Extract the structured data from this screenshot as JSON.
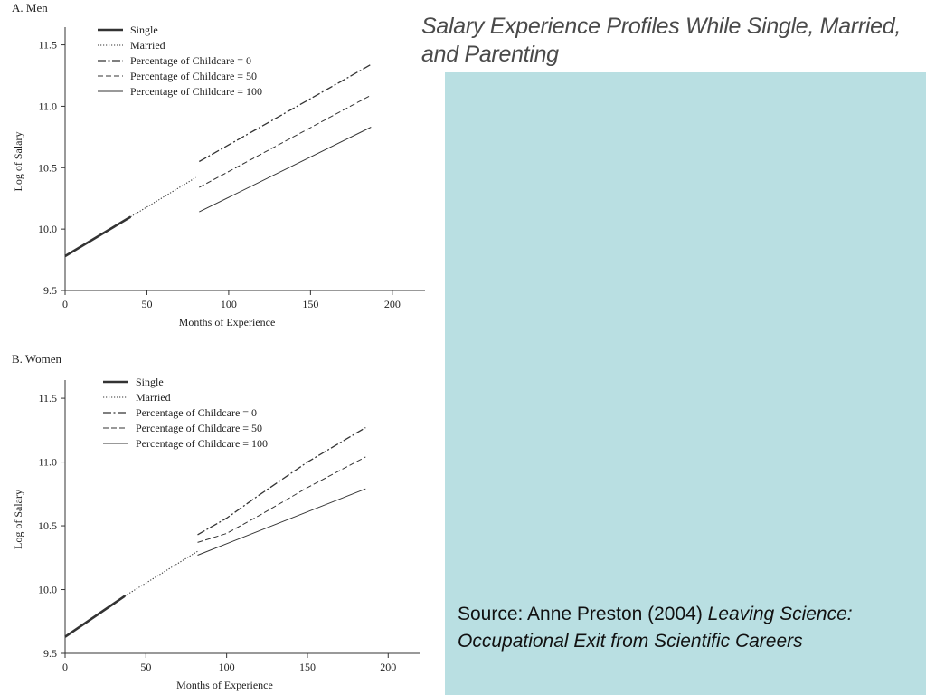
{
  "slide": {
    "title": "Salary Experience Profiles While Single, Married, and Parenting",
    "panel_color": "#b9dfe2",
    "source_prefix": "Source: Anne Preston (2004) ",
    "source_book": "Leaving Science: Occupational Exit from Scientific Careers"
  },
  "chart_data": [
    {
      "type": "line",
      "title": "A. Men",
      "xlabel": "Months of Experience",
      "ylabel": "Log of Salary",
      "xlim": [
        0,
        220
      ],
      "ylim": [
        9.5,
        11.6
      ],
      "xticks": [
        0,
        50,
        100,
        150,
        200
      ],
      "yticks": [
        9.5,
        10.0,
        10.5,
        11.0,
        11.5
      ],
      "ytick_labels": [
        "9.5",
        "10.0",
        "10.5",
        "11.0",
        "11.5"
      ],
      "legend_position": "top-left",
      "series": [
        {
          "name": "Single",
          "style": "solid-thick",
          "x": [
            0,
            40
          ],
          "y": [
            9.78,
            10.1
          ]
        },
        {
          "name": "Married",
          "style": "dotted",
          "x": [
            40,
            80
          ],
          "y": [
            10.1,
            10.42
          ]
        },
        {
          "name": "Percentage of Childcare = 0",
          "style": "dash-dot",
          "x": [
            82,
            187
          ],
          "y": [
            10.55,
            11.34
          ]
        },
        {
          "name": "Percentage of Childcare = 50",
          "style": "dashed",
          "x": [
            82,
            187
          ],
          "y": [
            10.34,
            11.09
          ]
        },
        {
          "name": "Percentage of Childcare = 100",
          "style": "solid-thin",
          "x": [
            82,
            187
          ],
          "y": [
            10.14,
            10.83
          ]
        }
      ]
    },
    {
      "type": "line",
      "title": "B. Women",
      "xlabel": "Months of Experience",
      "ylabel": "Log of Salary",
      "xlim": [
        0,
        220
      ],
      "ylim": [
        9.5,
        11.6
      ],
      "xticks": [
        0,
        50,
        100,
        150,
        200
      ],
      "yticks": [
        9.5,
        10.0,
        10.5,
        11.0,
        11.5
      ],
      "ytick_labels": [
        "9.5",
        "10.0",
        "10.5",
        "11.0",
        "11.5"
      ],
      "legend_position": "top-left",
      "series": [
        {
          "name": "Single",
          "style": "solid-thick",
          "x": [
            0,
            37
          ],
          "y": [
            9.63,
            9.95
          ]
        },
        {
          "name": "Married",
          "style": "dotted",
          "x": [
            37,
            82
          ],
          "y": [
            9.95,
            10.3
          ]
        },
        {
          "name": "Percentage of Childcare = 0",
          "style": "dash-dot",
          "x": [
            82,
            100,
            120,
            150,
            186
          ],
          "y": [
            10.43,
            10.56,
            10.74,
            11.0,
            11.27
          ]
        },
        {
          "name": "Percentage of Childcare = 50",
          "style": "dashed",
          "x": [
            82,
            100,
            120,
            150,
            186
          ],
          "y": [
            10.37,
            10.44,
            10.58,
            10.8,
            11.04
          ]
        },
        {
          "name": "Percentage of Childcare = 100",
          "style": "solid-thin",
          "x": [
            82,
            186
          ],
          "y": [
            10.27,
            10.79
          ]
        }
      ]
    }
  ]
}
